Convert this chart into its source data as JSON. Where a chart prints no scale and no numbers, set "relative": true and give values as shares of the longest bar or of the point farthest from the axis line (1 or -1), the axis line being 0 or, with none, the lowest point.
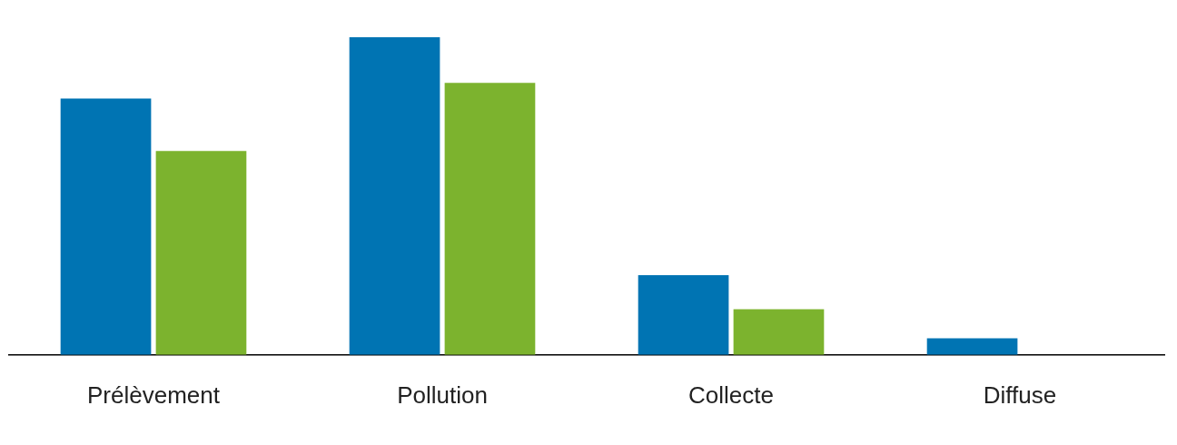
{
  "chart_data": {
    "type": "bar",
    "relative": true,
    "categories": [
      "Prélèvement",
      "Pollution",
      "Collecte",
      "Diffuse"
    ],
    "series": [
      {
        "color": "#0074b3",
        "values": [
          0.807,
          1,
          0.251,
          0.052
        ]
      },
      {
        "color": "#7cb32e",
        "values": [
          0.642,
          0.856,
          0.144,
          null
        ]
      }
    ],
    "grid": false,
    "legend": false
  }
}
